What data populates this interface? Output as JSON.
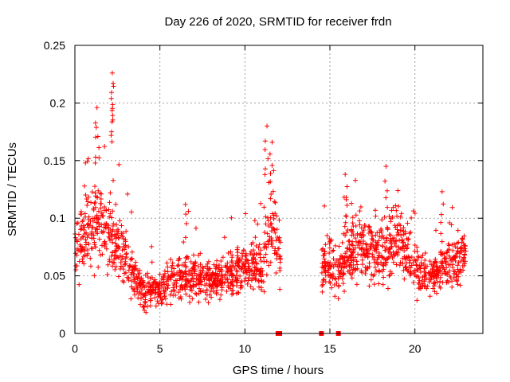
{
  "chart_data": {
    "type": "scatter",
    "title": "Day 226 of 2020, SRMTID for receiver frdn",
    "xlabel": "GPS time / hours",
    "ylabel": "SRMTID / TECUs",
    "xlim": [
      0,
      24
    ],
    "ylim": [
      0,
      0.25
    ],
    "xticks": [
      0,
      5,
      10,
      15,
      20
    ],
    "yticks": [
      0,
      0.05,
      0.1,
      0.15,
      0.2,
      0.25
    ],
    "xtick_labels": [
      "0",
      "5",
      "10",
      "15",
      "20"
    ],
    "ytick_labels": [
      "0",
      "0.05",
      "0.1",
      "0.15",
      "0.2",
      "0.25"
    ],
    "grid": true,
    "marker": "+",
    "color": "#ff0000",
    "gap_markers_x": [
      11.95,
      12.05,
      14.5,
      15.5
    ],
    "envelope": {
      "x": [
        0,
        0.5,
        1,
        1.5,
        2,
        2.5,
        3,
        3.5,
        4,
        5,
        6,
        7,
        8,
        9,
        10,
        11,
        11.5,
        12,
        14.5,
        15,
        15.5,
        16,
        17,
        18,
        19,
        20,
        21,
        22,
        23
      ],
      "y": [
        0.07,
        0.085,
        0.09,
        0.095,
        0.085,
        0.08,
        0.065,
        0.05,
        0.035,
        0.04,
        0.05,
        0.05,
        0.045,
        0.05,
        0.055,
        0.06,
        0.09,
        0.07,
        0.055,
        0.06,
        0.05,
        0.07,
        0.075,
        0.07,
        0.08,
        0.055,
        0.05,
        0.06,
        0.065
      ]
    },
    "peaks": [
      {
        "x": 1.3,
        "y": 0.196
      },
      {
        "x": 2.2,
        "y": 0.226
      },
      {
        "x": 2.25,
        "y": 0.217
      },
      {
        "x": 6.5,
        "y": 0.112
      },
      {
        "x": 11.3,
        "y": 0.18
      },
      {
        "x": 11.6,
        "y": 0.166
      },
      {
        "x": 15.9,
        "y": 0.138
      },
      {
        "x": 18.3,
        "y": 0.145
      },
      {
        "x": 19.0,
        "y": 0.124
      },
      {
        "x": 21.6,
        "y": 0.123
      }
    ]
  }
}
